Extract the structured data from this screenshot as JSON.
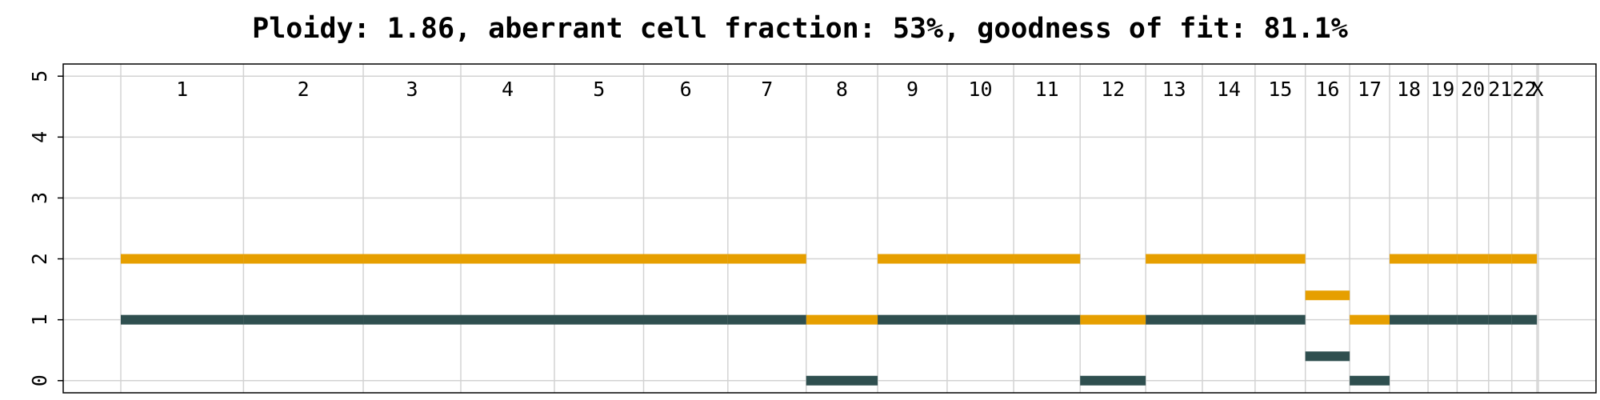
{
  "chart_data": {
    "type": "segment",
    "title": "Ploidy: 1.86, aberrant cell fraction: 53%, goodness of fit: 81.1%",
    "ylim": [
      -0.2,
      5.2
    ],
    "yticks": [
      0,
      1,
      2,
      3,
      4,
      5
    ],
    "grid": true,
    "colors": {
      "major": "#E69F00",
      "minor": "#2F4F4F",
      "grid": "#d3d3d3",
      "axis": "#000000"
    },
    "chromosomes": [
      {
        "name": "1",
        "start": 0,
        "end": 249
      },
      {
        "name": "2",
        "start": 249,
        "end": 492
      },
      {
        "name": "3",
        "start": 492,
        "end": 690
      },
      {
        "name": "4",
        "start": 690,
        "end": 880
      },
      {
        "name": "5",
        "start": 880,
        "end": 1061
      },
      {
        "name": "6",
        "start": 1061,
        "end": 1232
      },
      {
        "name": "7",
        "start": 1232,
        "end": 1391
      },
      {
        "name": "8",
        "start": 1391,
        "end": 1536
      },
      {
        "name": "9",
        "start": 1536,
        "end": 1677
      },
      {
        "name": "10",
        "start": 1677,
        "end": 1812
      },
      {
        "name": "11",
        "start": 1812,
        "end": 1947
      },
      {
        "name": "12",
        "start": 1947,
        "end": 2080
      },
      {
        "name": "13",
        "start": 2080,
        "end": 2195
      },
      {
        "name": "14",
        "start": 2195,
        "end": 2302
      },
      {
        "name": "15",
        "start": 2302,
        "end": 2404
      },
      {
        "name": "16",
        "start": 2404,
        "end": 2494
      },
      {
        "name": "17",
        "start": 2494,
        "end": 2575
      },
      {
        "name": "18",
        "start": 2575,
        "end": 2653
      },
      {
        "name": "19",
        "start": 2653,
        "end": 2712
      },
      {
        "name": "20",
        "start": 2712,
        "end": 2776
      },
      {
        "name": "21",
        "start": 2776,
        "end": 2823
      },
      {
        "name": "22",
        "start": 2823,
        "end": 2874
      },
      {
        "name": "X",
        "start": 2874,
        "end": 2877
      }
    ],
    "series": [
      {
        "role": "major",
        "segments": [
          {
            "chrom": "1",
            "value": 2
          },
          {
            "chrom": "2",
            "value": 2
          },
          {
            "chrom": "3",
            "value": 2
          },
          {
            "chrom": "4",
            "value": 2
          },
          {
            "chrom": "5",
            "value": 2
          },
          {
            "chrom": "6",
            "value": 2
          },
          {
            "chrom": "7",
            "value": 2
          },
          {
            "chrom": "8",
            "value": 1
          },
          {
            "chrom": "9",
            "value": 2
          },
          {
            "chrom": "10",
            "value": 2
          },
          {
            "chrom": "11",
            "value": 2
          },
          {
            "chrom": "12",
            "value": 1
          },
          {
            "chrom": "13",
            "value": 2
          },
          {
            "chrom": "14",
            "value": 2
          },
          {
            "chrom": "15",
            "value": 2
          },
          {
            "chrom": "16",
            "value": 1.4
          },
          {
            "chrom": "17",
            "value": 1
          },
          {
            "chrom": "18",
            "value": 2
          },
          {
            "chrom": "19",
            "value": 2
          },
          {
            "chrom": "20",
            "value": 2
          },
          {
            "chrom": "21",
            "value": 2
          },
          {
            "chrom": "22",
            "value": 2
          }
        ]
      },
      {
        "role": "minor",
        "segments": [
          {
            "chrom": "1",
            "value": 1
          },
          {
            "chrom": "2",
            "value": 1
          },
          {
            "chrom": "3",
            "value": 1
          },
          {
            "chrom": "4",
            "value": 1
          },
          {
            "chrom": "5",
            "value": 1
          },
          {
            "chrom": "6",
            "value": 1
          },
          {
            "chrom": "7",
            "value": 1
          },
          {
            "chrom": "8",
            "value": 0
          },
          {
            "chrom": "9",
            "value": 1
          },
          {
            "chrom": "10",
            "value": 1
          },
          {
            "chrom": "11",
            "value": 1
          },
          {
            "chrom": "12",
            "value": 0
          },
          {
            "chrom": "13",
            "value": 1
          },
          {
            "chrom": "14",
            "value": 1
          },
          {
            "chrom": "15",
            "value": 1
          },
          {
            "chrom": "16",
            "value": 0.4
          },
          {
            "chrom": "17",
            "value": 0
          },
          {
            "chrom": "18",
            "value": 1
          },
          {
            "chrom": "19",
            "value": 1
          },
          {
            "chrom": "20",
            "value": 1
          },
          {
            "chrom": "21",
            "value": 1
          },
          {
            "chrom": "22",
            "value": 1
          }
        ]
      }
    ]
  }
}
